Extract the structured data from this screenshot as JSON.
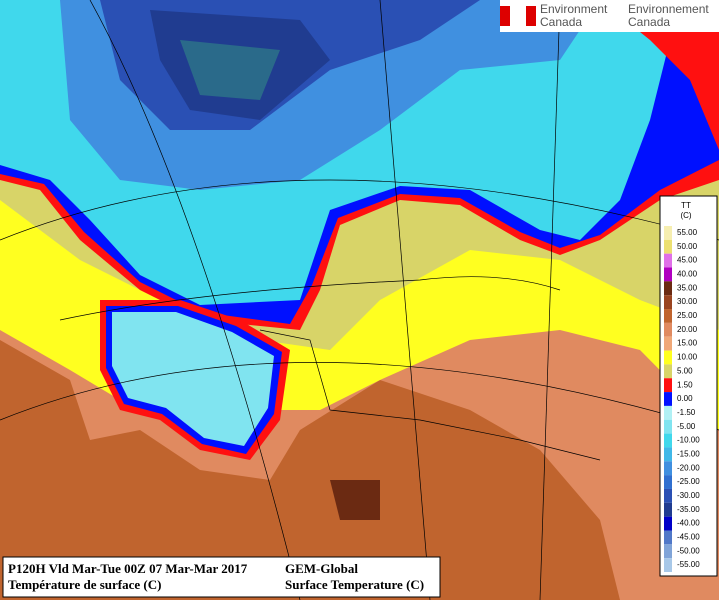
{
  "logo": {
    "line1_en": "Environment",
    "line2_en": "Canada",
    "line1_fr": "Environnement",
    "line2_fr": "Canada"
  },
  "legend": {
    "title": "TT",
    "unit": "(C)",
    "items": [
      {
        "label": "55.00",
        "color": "#f6eeb0"
      },
      {
        "label": "50.00",
        "color": "#ece070"
      },
      {
        "label": "45.00",
        "color": "#e070e8"
      },
      {
        "label": "40.00",
        "color": "#b000c0"
      },
      {
        "label": "35.00",
        "color": "#6b2a12"
      },
      {
        "label": "30.00",
        "color": "#9a4420"
      },
      {
        "label": "25.00",
        "color": "#c0642e"
      },
      {
        "label": "20.00",
        "color": "#e08a60"
      },
      {
        "label": "15.00",
        "color": "#f0a878"
      },
      {
        "label": "10.00",
        "color": "#ffff20"
      },
      {
        "label": "5.00",
        "color": "#d8d468"
      },
      {
        "label": "1.50",
        "color": "#ff1010"
      },
      {
        "label": "0.00",
        "color": "#0010ff"
      },
      {
        "label": "-1.50",
        "color": "#b0f0f4"
      },
      {
        "label": "-5.00",
        "color": "#80e4f0"
      },
      {
        "label": "-10.00",
        "color": "#40d8ec"
      },
      {
        "label": "-15.00",
        "color": "#40b8e8"
      },
      {
        "label": "-20.00",
        "color": "#4090e0"
      },
      {
        "label": "-25.00",
        "color": "#3070d0"
      },
      {
        "label": "-30.00",
        "color": "#2a50b4"
      },
      {
        "label": "-35.00",
        "color": "#203c90"
      },
      {
        "label": "-40.00",
        "color": "#0000c8"
      },
      {
        "label": "-45.00",
        "color": "#5078c8"
      },
      {
        "label": "-50.00",
        "color": "#80a4d8"
      },
      {
        "label": "-55.00",
        "color": "#a8c8e8"
      }
    ]
  },
  "caption": {
    "run": "P120H Vld Mar-Tue 00Z 07 Mar-Mar 2017",
    "title_fr": "Température de surface (C)",
    "model": "GEM-Global",
    "title_en": "Surface Temperature (C)"
  }
}
